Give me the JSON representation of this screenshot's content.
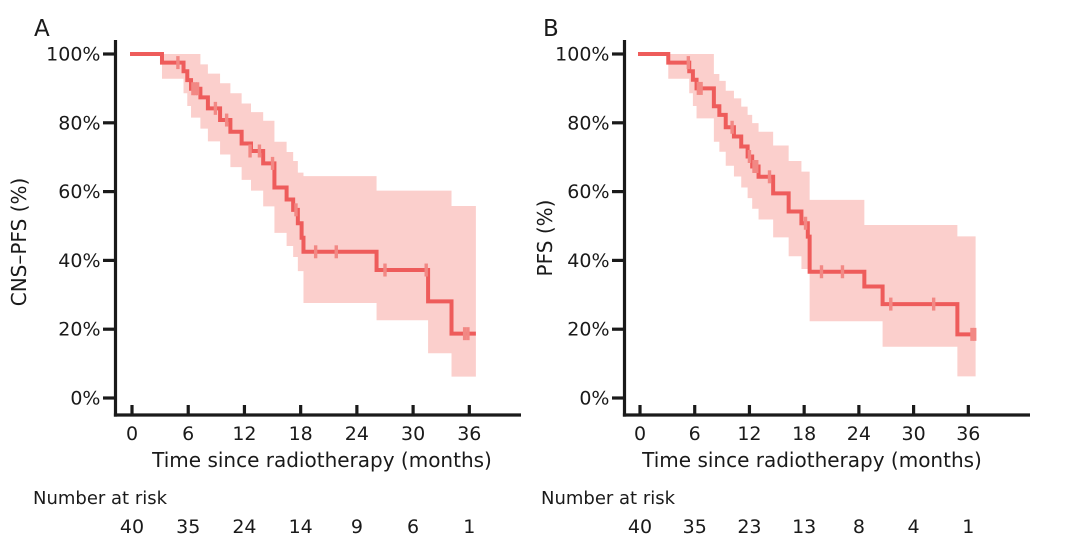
{
  "figure": {
    "background": "#ffffff",
    "line_color": "#ee5c5b",
    "band_color": "#fbcfcc",
    "censor_color": "#f28884",
    "axis_color": "#1a1a1a",
    "text_color": "#1a1a1a"
  },
  "chart_data": [
    {
      "type": "line",
      "subtype": "kaplan-meier-step",
      "panel_label": "A",
      "xlabel": "Time since radiotherapy (months)",
      "ylabel": "CNS–PFS (%)",
      "xlim": [
        0,
        41
      ],
      "ylim": [
        0,
        100
      ],
      "x_ticks": [
        0,
        6,
        12,
        18,
        24,
        30,
        36
      ],
      "y_ticks": [
        0,
        20,
        40,
        60,
        80,
        100
      ],
      "y_tick_suffix": "%",
      "grid": false,
      "legend": "none",
      "series": [
        {
          "name": "CNS-PFS",
          "end_time": 36.7,
          "steps": [
            [
              0,
              100
            ],
            [
              3.2,
              97.5
            ],
            [
              5.5,
              95
            ],
            [
              5.9,
              92.4
            ],
            [
              6.3,
              89.9
            ],
            [
              7.3,
              87.4
            ],
            [
              8.1,
              84.2
            ],
            [
              9.4,
              80.8
            ],
            [
              10.5,
              77.4
            ],
            [
              11.7,
              74
            ],
            [
              12.7,
              71.8
            ],
            [
              14,
              68.2
            ],
            [
              15.2,
              61.2
            ],
            [
              16.5,
              57.7
            ],
            [
              17.2,
              54.7
            ],
            [
              17.7,
              50.8
            ],
            [
              18.1,
              46.6
            ],
            [
              18.3,
              42.5
            ],
            [
              26.1,
              37.2
            ],
            [
              31.6,
              28.1
            ],
            [
              34.1,
              18.7
            ]
          ]
        }
      ],
      "censors": [
        [
          4.9,
          97.5
        ],
        [
          6.5,
          89.9
        ],
        [
          6.75,
          89.9
        ],
        [
          7,
          89.9
        ],
        [
          8.9,
          84.2
        ],
        [
          10.1,
          80.8
        ],
        [
          12.6,
          71.8
        ],
        [
          13.6,
          71.8
        ],
        [
          15,
          68.2
        ],
        [
          17.5,
          54.7
        ],
        [
          19.6,
          42.5
        ],
        [
          21.8,
          42.5
        ],
        [
          27,
          37.2
        ],
        [
          31.4,
          37.2
        ],
        [
          35.5,
          18.7
        ],
        [
          35.85,
          18.7
        ]
      ],
      "confidence_band": {
        "end_time": 36.7,
        "steps": [
          [
            3.2,
            100,
            92.8
          ],
          [
            5.5,
            100,
            88.6
          ],
          [
            5.9,
            100,
            84.9
          ],
          [
            6.3,
            100,
            81.5
          ],
          [
            7.3,
            97,
            78.3
          ],
          [
            8.1,
            94.3,
            74.6
          ],
          [
            9.4,
            91.5,
            70.8
          ],
          [
            10.5,
            88.6,
            67.1
          ],
          [
            11.7,
            85.6,
            63.4
          ],
          [
            12.7,
            83.1,
            60.3
          ],
          [
            14,
            80.6,
            55.7
          ],
          [
            15.2,
            74.5,
            48
          ],
          [
            16.5,
            71.5,
            44.2
          ],
          [
            17.2,
            68.9,
            41
          ],
          [
            17.7,
            65.5,
            36.9
          ],
          [
            18.3,
            64.5,
            27.6
          ],
          [
            26.1,
            60.3,
            22.6
          ],
          [
            31.6,
            60.3,
            13
          ],
          [
            34.1,
            55.8,
            6.2
          ]
        ]
      },
      "number_at_risk": {
        "label": "Number at risk",
        "times": [
          0,
          6,
          12,
          18,
          24,
          30,
          36
        ],
        "counts": [
          40,
          35,
          24,
          14,
          9,
          6,
          1
        ]
      }
    },
    {
      "type": "line",
      "subtype": "kaplan-meier-step",
      "panel_label": "B",
      "xlabel": "Time since radiotherapy (months)",
      "ylabel": "PFS (%)",
      "xlim": [
        0,
        41
      ],
      "ylim": [
        0,
        100
      ],
      "x_ticks": [
        0,
        6,
        12,
        18,
        24,
        30,
        36
      ],
      "y_ticks": [
        0,
        20,
        40,
        60,
        80,
        100
      ],
      "y_tick_suffix": "%",
      "grid": false,
      "legend": "none",
      "series": [
        {
          "name": "PFS",
          "end_time": 36.8,
          "steps": [
            [
              0,
              100
            ],
            [
              3.1,
              97.5
            ],
            [
              5.4,
              95
            ],
            [
              5.8,
              92.5
            ],
            [
              6.2,
              90
            ],
            [
              8.1,
              84.8
            ],
            [
              8.7,
              82.3
            ],
            [
              9.4,
              78.7
            ],
            [
              10.3,
              76
            ],
            [
              11.1,
              73.1
            ],
            [
              11.8,
              70.2
            ],
            [
              12.3,
              67.3
            ],
            [
              13,
              64.3
            ],
            [
              14.6,
              59.5
            ],
            [
              16.3,
              54.2
            ],
            [
              17.7,
              50.8
            ],
            [
              18.4,
              46.9
            ],
            [
              18.6,
              36.7
            ],
            [
              24.6,
              32.4
            ],
            [
              26.6,
              27.3
            ],
            [
              34.8,
              18.5
            ]
          ]
        }
      ],
      "censors": [
        [
          5.3,
          97.5
        ],
        [
          6.4,
          90
        ],
        [
          6.7,
          90
        ],
        [
          10.1,
          78.7
        ],
        [
          12,
          70.2
        ],
        [
          12.5,
          67.3
        ],
        [
          12.8,
          67.3
        ],
        [
          14.2,
          64.3
        ],
        [
          18.15,
          50.8
        ],
        [
          19.9,
          36.7
        ],
        [
          22.2,
          36.7
        ],
        [
          27.5,
          27.3
        ],
        [
          32.2,
          27.3
        ],
        [
          36.4,
          18.5
        ],
        [
          36.7,
          18.5
        ]
      ],
      "confidence_band": {
        "end_time": 36.8,
        "steps": [
          [
            3.1,
            100,
            92.8
          ],
          [
            5.4,
            100,
            88.6
          ],
          [
            5.8,
            100,
            84.9
          ],
          [
            6.2,
            100,
            81.3
          ],
          [
            8.1,
            94.2,
            74.5
          ],
          [
            8.7,
            92.2,
            71.6
          ],
          [
            9.4,
            89.3,
            67.5
          ],
          [
            10.3,
            87.1,
            64.4
          ],
          [
            11.1,
            84.7,
            61.2
          ],
          [
            11.8,
            82.3,
            58.1
          ],
          [
            12.3,
            79.9,
            55
          ],
          [
            13,
            77.4,
            51.9
          ],
          [
            14.6,
            73.4,
            46.7
          ],
          [
            16.3,
            68.9,
            41.2
          ],
          [
            17.7,
            65.8,
            37.5
          ],
          [
            18.6,
            57.6,
            22.3
          ],
          [
            24.6,
            50.3,
            22.3
          ],
          [
            26.6,
            50.3,
            14.9
          ],
          [
            34.8,
            47,
            6.3
          ]
        ]
      },
      "number_at_risk": {
        "label": "Number at risk",
        "times": [
          0,
          6,
          12,
          18,
          24,
          30,
          36
        ],
        "counts": [
          40,
          35,
          23,
          13,
          8,
          4,
          1
        ]
      }
    }
  ]
}
